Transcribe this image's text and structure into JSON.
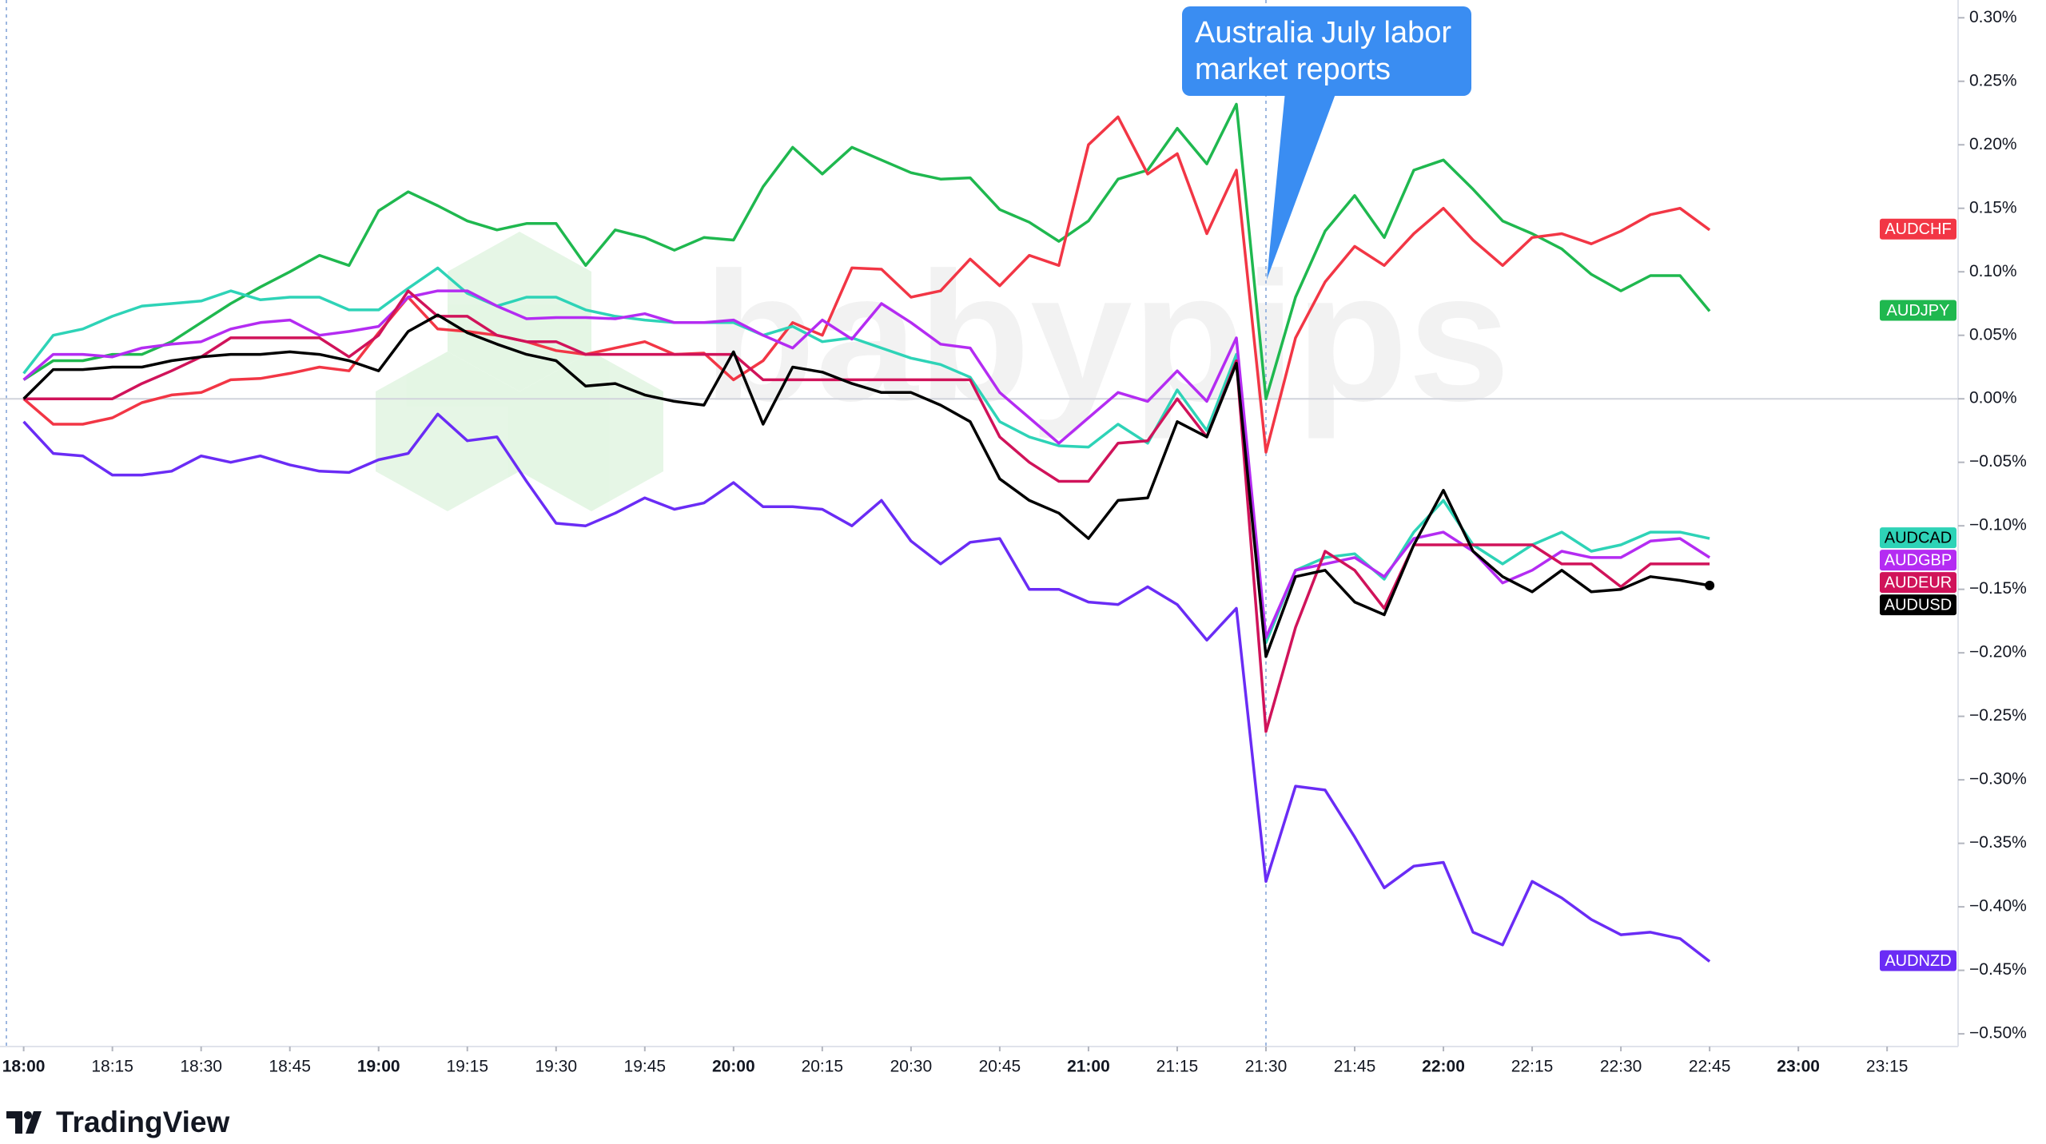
{
  "chart_data": {
    "type": "line",
    "annotation": "Australia July labor market reports",
    "watermark": "babypips",
    "brand": "TradingView",
    "x": [
      "18:00",
      "18:05",
      "18:10",
      "18:15",
      "18:20",
      "18:25",
      "18:30",
      "18:35",
      "18:40",
      "18:45",
      "18:50",
      "18:55",
      "19:00",
      "19:05",
      "19:10",
      "19:15",
      "19:20",
      "19:25",
      "19:30",
      "19:35",
      "19:40",
      "19:45",
      "19:50",
      "19:55",
      "20:00",
      "20:05",
      "20:10",
      "20:15",
      "20:20",
      "20:25",
      "20:30",
      "20:35",
      "20:40",
      "20:45",
      "20:50",
      "20:55",
      "21:00",
      "21:05",
      "21:10",
      "21:15",
      "21:20",
      "21:25",
      "21:30",
      "21:35",
      "21:40",
      "21:45",
      "21:50",
      "21:55",
      "22:00",
      "22:05",
      "22:10",
      "22:15",
      "22:20",
      "22:25",
      "22:30",
      "22:35",
      "22:40",
      "22:45"
    ],
    "xlim": [
      "17:56",
      "23:27"
    ],
    "xticks": [
      "18:00",
      "18:15",
      "18:30",
      "18:45",
      "19:00",
      "19:15",
      "19:30",
      "19:45",
      "20:00",
      "20:15",
      "20:30",
      "20:45",
      "21:00",
      "21:15",
      "21:30",
      "21:45",
      "22:00",
      "22:15",
      "22:30",
      "22:45",
      "23:00",
      "23:15"
    ],
    "ylim": [
      -0.51,
      0.314
    ],
    "yticks": [
      {
        "value": 0.3,
        "label": "0.30%"
      },
      {
        "value": 0.25,
        "label": "0.25%"
      },
      {
        "value": 0.2,
        "label": "0.20%"
      },
      {
        "value": 0.15,
        "label": "0.15%"
      },
      {
        "value": 0.1,
        "label": "0.10%"
      },
      {
        "value": 0.05,
        "label": "0.05%"
      },
      {
        "value": 0,
        "label": "0.00%"
      },
      {
        "value": -0.05,
        "label": "−0.05%"
      },
      {
        "value": -0.1,
        "label": "−0.10%"
      },
      {
        "value": -0.15,
        "label": "−0.15%"
      },
      {
        "value": -0.2,
        "label": "−0.20%"
      },
      {
        "value": -0.25,
        "label": "−0.25%"
      },
      {
        "value": -0.3,
        "label": "−0.30%"
      },
      {
        "value": -0.35,
        "label": "−0.35%"
      },
      {
        "value": -0.4,
        "label": "−0.40%"
      },
      {
        "value": -0.45,
        "label": "−0.45%"
      },
      {
        "value": -0.5,
        "label": "−0.50%"
      }
    ],
    "series": [
      {
        "name": "AUDNZD",
        "color": "#6a2cf5",
        "values": [
          -0.018,
          -0.043,
          -0.045,
          -0.06,
          -0.06,
          -0.057,
          -0.045,
          -0.05,
          -0.045,
          -0.052,
          -0.057,
          -0.058,
          -0.048,
          -0.043,
          -0.012,
          -0.033,
          -0.03,
          -0.065,
          -0.098,
          -0.1,
          -0.09,
          -0.078,
          -0.087,
          -0.082,
          -0.066,
          -0.085,
          -0.085,
          -0.087,
          -0.1,
          -0.08,
          -0.112,
          -0.13,
          -0.113,
          -0.11,
          -0.15,
          -0.15,
          -0.16,
          -0.162,
          -0.148,
          -0.162,
          -0.19,
          -0.165,
          -0.38,
          -0.305,
          -0.308,
          -0.345,
          -0.385,
          -0.368,
          -0.365,
          -0.42,
          -0.43,
          -0.38,
          -0.393,
          -0.41,
          -0.422,
          -0.42,
          -0.425,
          -0.443
        ]
      },
      {
        "name": "AUDJPY",
        "color": "#1fb84f",
        "values": [
          0.015,
          0.03,
          0.03,
          0.035,
          0.035,
          0.045,
          0.06,
          0.075,
          0.088,
          0.1,
          0.113,
          0.105,
          0.148,
          0.163,
          0.152,
          0.14,
          0.133,
          0.138,
          0.138,
          0.105,
          0.133,
          0.127,
          0.117,
          0.127,
          0.125,
          0.167,
          0.198,
          0.177,
          0.198,
          0.188,
          0.178,
          0.173,
          0.174,
          0.149,
          0.139,
          0.124,
          0.14,
          0.173,
          0.18,
          0.213,
          0.185,
          0.232,
          0,
          0.08,
          0.132,
          0.16,
          0.127,
          0.18,
          0.188,
          0.165,
          0.14,
          0.13,
          0.118,
          0.098,
          0.085,
          0.097,
          0.097,
          0.069
        ]
      },
      {
        "name": "AUDCHF",
        "color": "#f23645",
        "values": [
          0,
          -0.02,
          -0.02,
          -0.015,
          -0.003,
          0.003,
          0.005,
          0.015,
          0.016,
          0.02,
          0.025,
          0.022,
          0.052,
          0.08,
          0.055,
          0.053,
          0.05,
          0.045,
          0.038,
          0.035,
          0.04,
          0.045,
          0.035,
          0.036,
          0.015,
          0.03,
          0.06,
          0.05,
          0.103,
          0.102,
          0.08,
          0.085,
          0.11,
          0.089,
          0.113,
          0.105,
          0.2,
          0.222,
          0.177,
          0.193,
          0.13,
          0.18,
          -0.042,
          0.048,
          0.092,
          0.12,
          0.105,
          0.13,
          0.15,
          0.125,
          0.105,
          0.127,
          0.13,
          0.122,
          0.132,
          0.145,
          0.15,
          0.133
        ]
      },
      {
        "name": "AUDCAD",
        "color": "#2ed3b7",
        "values": [
          0.02,
          0.05,
          0.055,
          0.065,
          0.073,
          0.075,
          0.077,
          0.085,
          0.078,
          0.08,
          0.08,
          0.07,
          0.07,
          0.087,
          0.103,
          0.083,
          0.073,
          0.08,
          0.08,
          0.07,
          0.065,
          0.062,
          0.06,
          0.06,
          0.06,
          0.05,
          0.057,
          0.045,
          0.048,
          0.04,
          0.032,
          0.027,
          0.017,
          -0.018,
          -0.03,
          -0.037,
          -0.038,
          -0.02,
          -0.035,
          0.007,
          -0.025,
          0.035,
          -0.192,
          -0.135,
          -0.125,
          -0.122,
          -0.142,
          -0.105,
          -0.08,
          -0.115,
          -0.13,
          -0.115,
          -0.105,
          -0.12,
          -0.115,
          -0.105,
          -0.105,
          -0.11
        ]
      },
      {
        "name": "AUDGBP",
        "color": "#b42cf2",
        "values": [
          0.015,
          0.035,
          0.035,
          0.033,
          0.04,
          0.043,
          0.045,
          0.055,
          0.06,
          0.062,
          0.05,
          0.053,
          0.057,
          0.08,
          0.085,
          0.085,
          0.073,
          0.063,
          0.064,
          0.064,
          0.063,
          0.067,
          0.06,
          0.06,
          0.062,
          0.05,
          0.04,
          0.062,
          0.047,
          0.075,
          0.06,
          0.043,
          0.04,
          0.005,
          -0.015,
          -0.035,
          -0.015,
          0.005,
          -0.002,
          0.022,
          -0.002,
          0.048,
          -0.188,
          -0.135,
          -0.13,
          -0.125,
          -0.14,
          -0.11,
          -0.105,
          -0.12,
          -0.145,
          -0.135,
          -0.12,
          -0.125,
          -0.125,
          -0.112,
          -0.11,
          -0.125
        ]
      },
      {
        "name": "AUDEUR",
        "color": "#d0135a",
        "values": [
          0,
          0,
          0,
          0,
          0.012,
          0.022,
          0.033,
          0.048,
          0.048,
          0.048,
          0.048,
          0.033,
          0.05,
          0.085,
          0.065,
          0.065,
          0.05,
          0.045,
          0.045,
          0.035,
          0.035,
          0.035,
          0.035,
          0.035,
          0.035,
          0.015,
          0.015,
          0.015,
          0.015,
          0.015,
          0.015,
          0.015,
          0.015,
          -0.03,
          -0.05,
          -0.065,
          -0.065,
          -0.035,
          -0.033,
          0,
          -0.03,
          0.03,
          -0.262,
          -0.18,
          -0.12,
          -0.135,
          -0.165,
          -0.115,
          -0.115,
          -0.115,
          -0.115,
          -0.115,
          -0.13,
          -0.13,
          -0.148,
          -0.13,
          -0.13,
          -0.13
        ]
      },
      {
        "name": "AUDUSD",
        "color": "#000000",
        "values": [
          0,
          0.023,
          0.023,
          0.025,
          0.025,
          0.03,
          0.033,
          0.035,
          0.035,
          0.037,
          0.035,
          0.03,
          0.022,
          0.053,
          0.066,
          0.052,
          0.043,
          0.035,
          0.03,
          0.01,
          0.012,
          0.003,
          -0.002,
          -0.005,
          0.037,
          -0.02,
          0.025,
          0.021,
          0.012,
          0.005,
          0.005,
          -0.005,
          -0.018,
          -0.063,
          -0.08,
          -0.09,
          -0.11,
          -0.08,
          -0.078,
          -0.018,
          -0.03,
          0.028,
          -0.203,
          -0.14,
          -0.135,
          -0.16,
          -0.17,
          -0.115,
          -0.072,
          -0.12,
          -0.14,
          -0.152,
          -0.135,
          -0.152,
          -0.15,
          -0.14,
          -0.143,
          -0.147
        ]
      }
    ]
  }
}
